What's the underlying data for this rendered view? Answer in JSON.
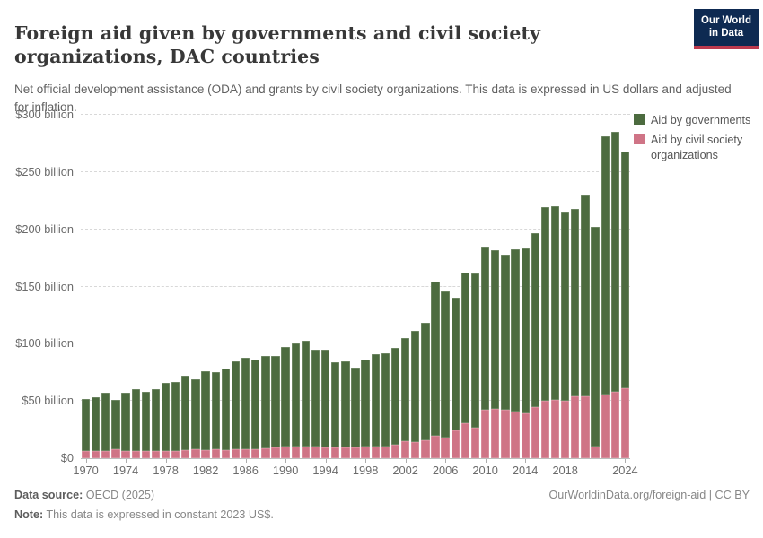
{
  "header": {
    "title": "Foreign aid given by governments and civil society organizations, DAC countries",
    "subtitle": "Net official development assistance (ODA) and grants by civil society organizations. This data is expressed in US dollars and adjusted for inflation.",
    "logo": {
      "line1": "Our World",
      "line2": "in Data"
    }
  },
  "chart_data": {
    "type": "bar",
    "stacked": true,
    "title": "Foreign aid given by governments and civil society organizations, DAC countries",
    "xlabel": "",
    "ylabel": "US dollars (constant 2023 US$), billions",
    "ylim": [
      0,
      300
    ],
    "ytick_step": 50,
    "ytick_labels": [
      "$0",
      "$50 billion",
      "$100 billion",
      "$150 billion",
      "$200 billion",
      "$250 billion",
      "$300 billion"
    ],
    "xtick_labels": [
      "1970",
      "1974",
      "1978",
      "1982",
      "1986",
      "1990",
      "1994",
      "1998",
      "2002",
      "2006",
      "2010",
      "2014",
      "2018",
      "2024"
    ],
    "grid": "horizontal-dashed",
    "legend_position": "right",
    "categories": [
      1970,
      1971,
      1972,
      1973,
      1974,
      1975,
      1976,
      1977,
      1978,
      1979,
      1980,
      1981,
      1982,
      1983,
      1984,
      1985,
      1986,
      1987,
      1988,
      1989,
      1990,
      1991,
      1992,
      1993,
      1994,
      1995,
      1996,
      1997,
      1998,
      1999,
      2000,
      2001,
      2002,
      2003,
      2004,
      2005,
      2006,
      2007,
      2008,
      2009,
      2010,
      2011,
      2012,
      2013,
      2014,
      2015,
      2016,
      2017,
      2018,
      2019,
      2020,
      2021,
      2022,
      2023,
      2024
    ],
    "series": [
      {
        "name": "Aid by governments",
        "color": "#4c6b3f",
        "values": [
          46,
          47,
          50.5,
          43.5,
          50.5,
          54,
          51.5,
          53.5,
          59.5,
          60,
          65,
          61.5,
          69,
          67.5,
          71,
          77,
          80,
          78.5,
          80,
          79.5,
          87.5,
          90.5,
          92,
          84.5,
          85.5,
          74.5,
          75.5,
          69.5,
          76,
          81,
          82,
          85,
          90,
          96.5,
          102,
          134.5,
          128,
          116.5,
          131.5,
          134.5,
          142,
          139,
          136,
          141.5,
          144.5,
          152.5,
          169,
          169,
          165.5,
          163.5,
          175.5,
          192,
          225,
          227,
          207
        ]
      },
      {
        "name": "Aid by civil society organizations",
        "color": "#cf7486",
        "values": [
          6,
          6,
          6.5,
          7.5,
          6.5,
          6.5,
          6.5,
          6.5,
          6,
          6.5,
          7,
          7.5,
          7,
          8,
          7,
          7.5,
          8,
          8,
          9,
          9.5,
          10,
          10,
          10.5,
          10,
          9.5,
          9.5,
          9.5,
          9.5,
          10,
          10,
          10,
          11.5,
          15,
          14.5,
          16,
          19.5,
          18,
          24,
          30.5,
          27,
          42,
          43,
          42,
          41,
          39,
          44.5,
          50,
          51,
          50,
          54,
          54,
          10,
          56,
          58,
          61
        ]
      }
    ]
  },
  "footer": {
    "source_label": "Data source:",
    "source_value": "OECD (2025)",
    "note_label": "Note:",
    "note_value": "This data is expressed in constant 2023 US$.",
    "credit": "OurWorldinData.org/foreign-aid | CC BY"
  }
}
